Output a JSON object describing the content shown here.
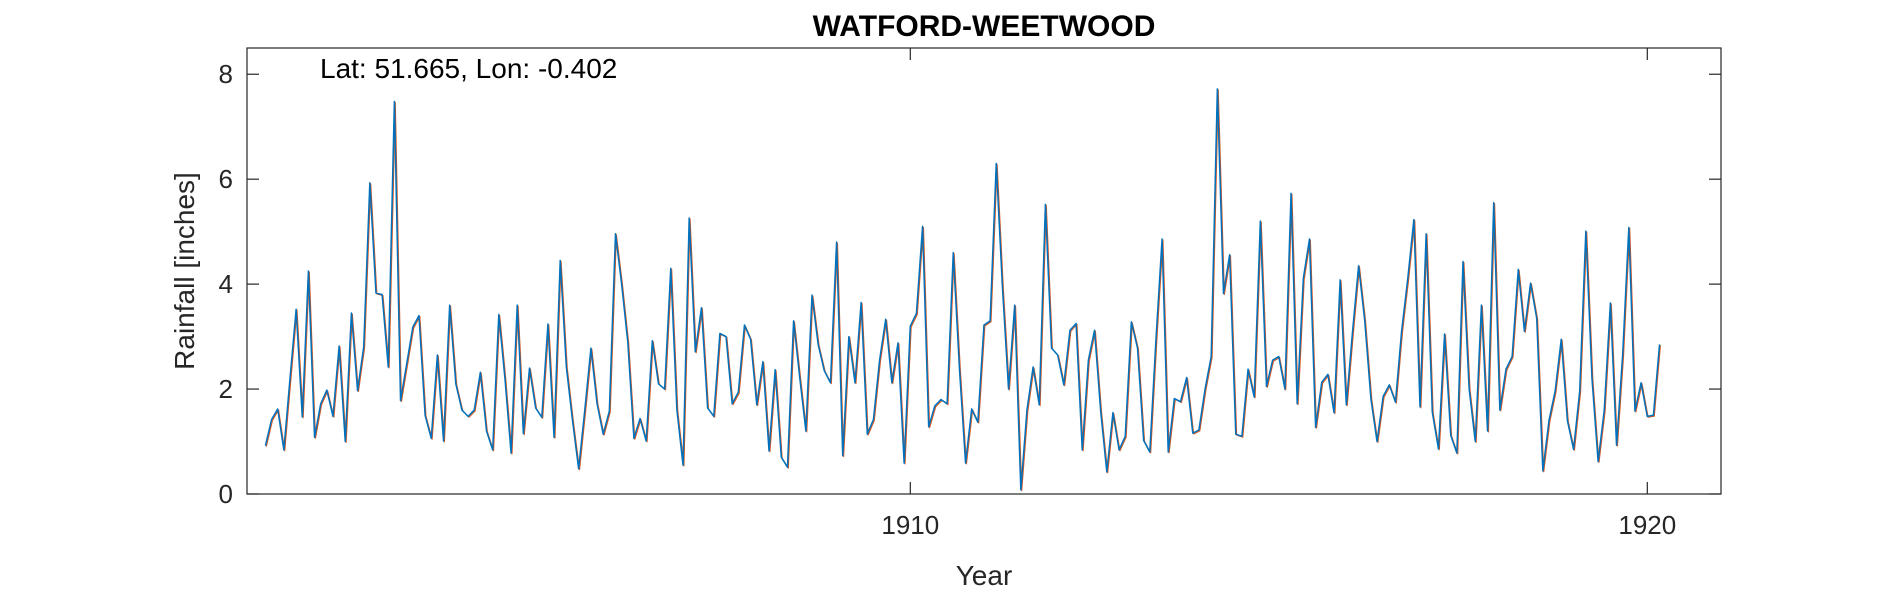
{
  "chart_data": {
    "type": "line",
    "title": "WATFORD-WEETWOOD",
    "annotation": "Lat: 51.665, Lon: -0.402",
    "xlabel": "Year",
    "ylabel": "Rainfall [inches]",
    "xlim": [
      1901.0,
      1921.0
    ],
    "ylim": [
      0,
      8.5
    ],
    "xticks": [
      1910,
      1920
    ],
    "yticks": [
      0,
      2,
      4,
      6,
      8
    ],
    "grid": false,
    "colors": {
      "primary": "#0072BD",
      "secondary": "#D95319",
      "axis": "#262626"
    },
    "x_start": 1901.25,
    "x_step": 0.08333,
    "series": [
      {
        "name": "",
        "values": [
          0.92,
          1.42,
          1.62,
          0.84,
          2.2,
          3.52,
          1.47,
          4.25,
          1.08,
          1.72,
          1.98,
          1.48,
          2.82,
          1.0,
          3.45,
          1.97,
          2.8,
          5.93,
          3.83,
          3.8,
          2.42,
          7.48,
          1.78,
          2.48,
          3.18,
          3.4,
          1.5,
          1.06,
          2.65,
          1.01,
          3.6,
          2.1,
          1.6,
          1.48,
          1.6,
          2.32,
          1.2,
          0.84,
          3.42,
          2.2,
          0.78,
          3.6,
          1.15,
          2.4,
          1.64,
          1.46,
          3.24,
          1.08,
          4.45,
          2.42,
          1.4,
          0.48,
          1.6,
          2.78,
          1.72,
          1.14,
          1.58,
          4.96,
          4.0,
          2.9,
          1.06,
          1.44,
          1.01,
          2.92,
          2.1,
          2.0,
          4.3,
          1.6,
          0.55,
          5.26,
          2.71,
          3.55,
          1.64,
          1.48,
          3.06,
          3.0,
          1.72,
          1.94,
          3.22,
          2.95,
          1.7,
          2.52,
          0.82,
          2.37,
          0.7,
          0.51,
          3.3,
          2.22,
          1.2,
          3.79,
          2.85,
          2.35,
          2.12,
          4.8,
          0.73,
          3.0,
          2.12,
          3.65,
          1.14,
          1.42,
          2.55,
          3.33,
          2.12,
          2.88,
          0.59,
          3.2,
          3.44,
          5.1,
          1.28,
          1.68,
          1.8,
          1.72,
          4.6,
          2.4,
          0.59,
          1.62,
          1.37,
          3.22,
          3.3,
          6.3,
          3.95,
          2.0,
          3.6,
          0.08,
          1.6,
          2.42,
          1.7,
          5.52,
          2.78,
          2.65,
          2.08,
          3.12,
          3.25,
          0.84,
          2.55,
          3.12,
          1.58,
          0.42,
          1.55,
          0.84,
          1.1,
          3.28,
          2.78,
          1.02,
          0.8,
          2.94,
          4.86,
          0.8,
          1.82,
          1.76,
          2.22,
          1.16,
          1.22,
          2.0,
          2.62,
          7.72,
          3.82,
          4.56,
          1.14,
          1.1,
          2.38,
          1.85,
          5.2,
          2.05,
          2.55,
          2.62,
          2.0,
          5.73,
          1.72,
          4.11,
          4.86,
          1.27,
          2.13,
          2.28,
          1.55,
          4.08,
          1.7,
          3.08,
          4.35,
          3.3,
          1.82,
          1.0,
          1.86,
          2.08,
          1.75,
          3.1,
          4.1,
          5.23,
          1.66,
          4.96,
          1.56,
          0.86,
          3.05,
          1.12,
          0.78,
          4.43,
          2.0,
          1.0,
          3.6,
          1.2,
          5.55,
          1.6,
          2.38,
          2.62,
          4.28,
          3.1,
          4.02,
          3.35,
          0.44,
          1.4,
          1.96,
          2.95,
          1.4,
          0.85,
          1.96,
          5.01,
          2.2,
          0.62,
          1.6,
          3.64,
          0.93,
          2.66,
          5.08,
          1.58,
          2.12,
          1.48,
          1.5,
          2.85
        ]
      }
    ]
  }
}
